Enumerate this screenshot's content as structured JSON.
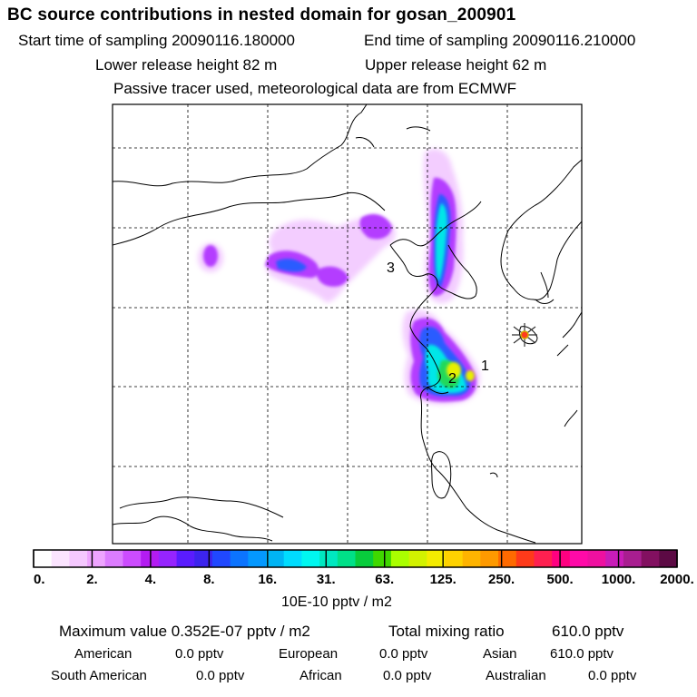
{
  "header": {
    "title": "BC  source contributions in nested domain for gosan_200901",
    "start_time": "Start time of sampling 20090116.180000",
    "end_time": "End time of sampling 20090116.210000",
    "lower_release": "Lower release height   82 m",
    "upper_release": "Upper release height   62 m",
    "tracer_note": "Passive tracer used, meteorological data are from ECMWF"
  },
  "map": {
    "markers": [
      "1",
      "2",
      "3"
    ],
    "receptor_symbol": "star"
  },
  "chart_data": {
    "type": "heatmap",
    "title": "BC  source contributions in nested domain for gosan_200901",
    "colorbar": {
      "tick_labels": [
        "0.",
        "2.",
        "4.",
        "8.",
        "16.",
        "31.",
        "63.",
        "125.",
        "250.",
        "500.",
        "1000.",
        "2000."
      ],
      "unit_label": "10E-10 pptv / m2",
      "colors": [
        "#ffffff",
        "#fbe4ff",
        "#f5c8ff",
        "#eea4ff",
        "#dc7cff",
        "#cc4cff",
        "#b31cf2",
        "#9624ff",
        "#5a1cff",
        "#3c24ee",
        "#2048ff",
        "#0c74ff",
        "#0498ff",
        "#00b4f4",
        "#00dcff",
        "#00f7f0",
        "#00e8c0",
        "#00e088",
        "#08cc3c",
        "#40d800",
        "#aaff00",
        "#d2f200",
        "#f4ec00",
        "#ffd200",
        "#ffb400",
        "#ff9a00",
        "#ff6a00",
        "#ff3a1a",
        "#ff2050",
        "#ff0080",
        "#ff0aa8",
        "#ee10a0",
        "#c81cb8",
        "#a81e90",
        "#821060",
        "#5c0a44"
      ]
    },
    "grid": true
  },
  "stats": {
    "max_value": "Maximum value  0.352E-07 pptv / m2",
    "total_mixing_label": "Total mixing ratio",
    "total_mixing_value": "610.0 pptv",
    "american_label": "American",
    "american_value": "0.0 pptv",
    "european_label": "European",
    "european_value": "0.0 pptv",
    "asian_label": "Asian",
    "asian_value": "610.0 pptv",
    "south_american_label": "South American",
    "south_american_value": "0.0 pptv",
    "african_label": "African",
    "african_value": "0.0 pptv",
    "australian_label": "Australian",
    "australian_value": "0.0 pptv"
  }
}
